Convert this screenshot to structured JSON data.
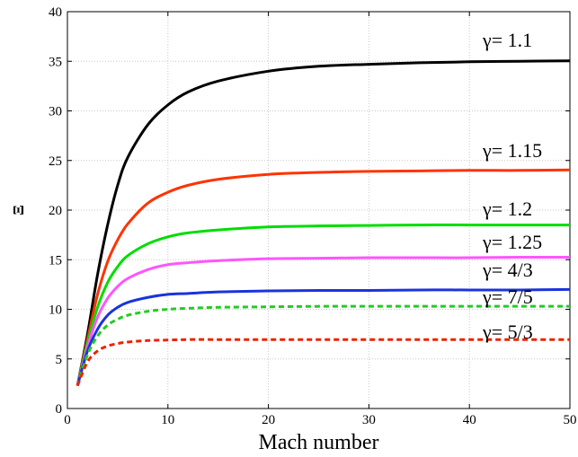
{
  "chart_data": {
    "type": "line",
    "xlabel": "Mach number",
    "ylabel": "Ξ",
    "xlim": [
      0,
      50
    ],
    "ylim": [
      0,
      40
    ],
    "x_ticks": [
      0,
      10,
      20,
      30,
      40,
      50
    ],
    "y_ticks": [
      0,
      5,
      10,
      15,
      20,
      25,
      30,
      35,
      40
    ],
    "grid": true,
    "x": [
      1,
      2,
      3,
      4,
      5,
      6,
      8,
      10,
      12,
      15,
      20,
      25,
      30,
      35,
      40,
      45,
      50
    ],
    "series": [
      {
        "name": "γ= 1.1",
        "color": "#000000",
        "dash": "solid",
        "values": [
          2.3,
          7.5,
          13.5,
          18.5,
          22.5,
          25.3,
          28.6,
          30.6,
          31.9,
          33.0,
          34.0,
          34.5,
          34.7,
          34.85,
          34.95,
          35.0,
          35.05
        ]
      },
      {
        "name": "γ= 1.15",
        "color": "#ff3300",
        "dash": "solid",
        "values": [
          2.3,
          7.0,
          11.5,
          14.8,
          17.0,
          18.6,
          20.7,
          21.8,
          22.5,
          23.1,
          23.6,
          23.8,
          23.9,
          23.95,
          24.0,
          24.0,
          24.05
        ]
      },
      {
        "name": "γ= 1.2",
        "color": "#00dd00",
        "dash": "solid",
        "values": [
          2.3,
          6.6,
          10.2,
          12.7,
          14.3,
          15.4,
          16.6,
          17.3,
          17.7,
          18.0,
          18.3,
          18.4,
          18.45,
          18.5,
          18.5,
          18.5,
          18.5
        ]
      },
      {
        "name": "γ= 1.25",
        "color": "#ff55ff",
        "dash": "solid",
        "values": [
          2.3,
          6.2,
          9.2,
          11.1,
          12.3,
          13.1,
          14.0,
          14.5,
          14.7,
          14.9,
          15.1,
          15.15,
          15.2,
          15.2,
          15.2,
          15.25,
          15.25
        ]
      },
      {
        "name": "γ= 4/3",
        "color": "#1a33dd",
        "dash": "solid",
        "values": [
          2.3,
          5.8,
          8.0,
          9.4,
          10.2,
          10.7,
          11.2,
          11.5,
          11.6,
          11.75,
          11.85,
          11.9,
          11.9,
          11.95,
          11.95,
          11.95,
          12.0
        ]
      },
      {
        "name": "γ= 7/5",
        "color": "#22cc22",
        "dash": "dashed",
        "values": [
          2.3,
          5.4,
          7.3,
          8.4,
          9.0,
          9.4,
          9.8,
          10.0,
          10.1,
          10.2,
          10.25,
          10.3,
          10.3,
          10.3,
          10.3,
          10.3,
          10.3
        ]
      },
      {
        "name": "γ= 5/3",
        "color": "#ee2200",
        "dash": "dashed",
        "values": [
          2.3,
          4.7,
          5.8,
          6.3,
          6.55,
          6.7,
          6.85,
          6.9,
          6.95,
          6.95,
          6.95,
          6.95,
          6.95,
          6.95,
          6.95,
          6.95,
          6.95
        ]
      }
    ]
  }
}
